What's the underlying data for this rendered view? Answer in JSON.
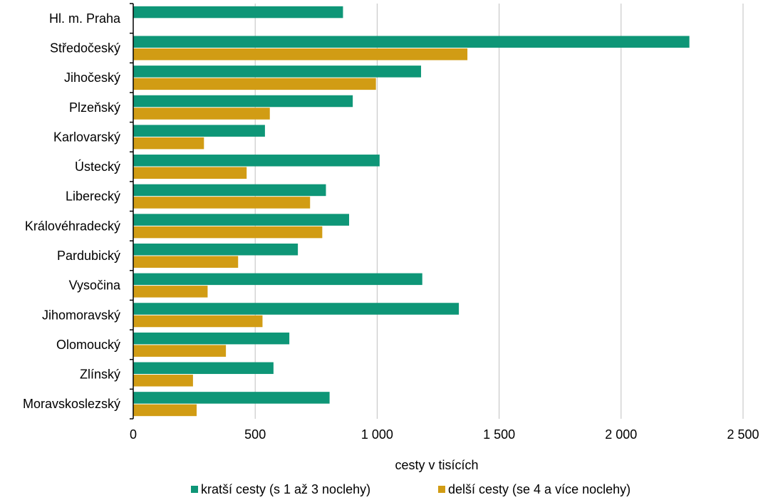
{
  "chart_data": {
    "type": "bar",
    "orientation": "horizontal",
    "categories": [
      "Hl. m. Praha",
      "Středočeský",
      "Jihočeský",
      "Plzeňský",
      "Karlovarský",
      "Ústecký",
      "Liberecký",
      "Královéhradecký",
      "Pardubický",
      "Vysočina",
      "Jihomoravský",
      "Olomoucký",
      "Zlínský",
      "Moravskoslezský"
    ],
    "series": [
      {
        "name": "kratší cesty (s 1 až 3 noclehy)",
        "color": "#0e9677",
        "values": [
          860,
          2280,
          1180,
          900,
          540,
          1010,
          790,
          885,
          675,
          1185,
          1335,
          640,
          575,
          805
        ]
      },
      {
        "name": "delší cesty (se 4 a více noclehy)",
        "color": "#d19c14",
        "values": [
          0,
          1370,
          995,
          560,
          290,
          465,
          725,
          775,
          430,
          305,
          530,
          380,
          245,
          260
        ]
      }
    ],
    "xlabel": "cesty v tisících",
    "xlim": [
      0,
      2500
    ],
    "xticks": [
      0,
      500,
      1000,
      1500,
      2000,
      2500
    ],
    "xtick_labels": [
      "0",
      "500",
      "1 000",
      "1 500",
      "2 000",
      "2 500"
    ],
    "grid": "vertical",
    "legend_position": "bottom"
  }
}
